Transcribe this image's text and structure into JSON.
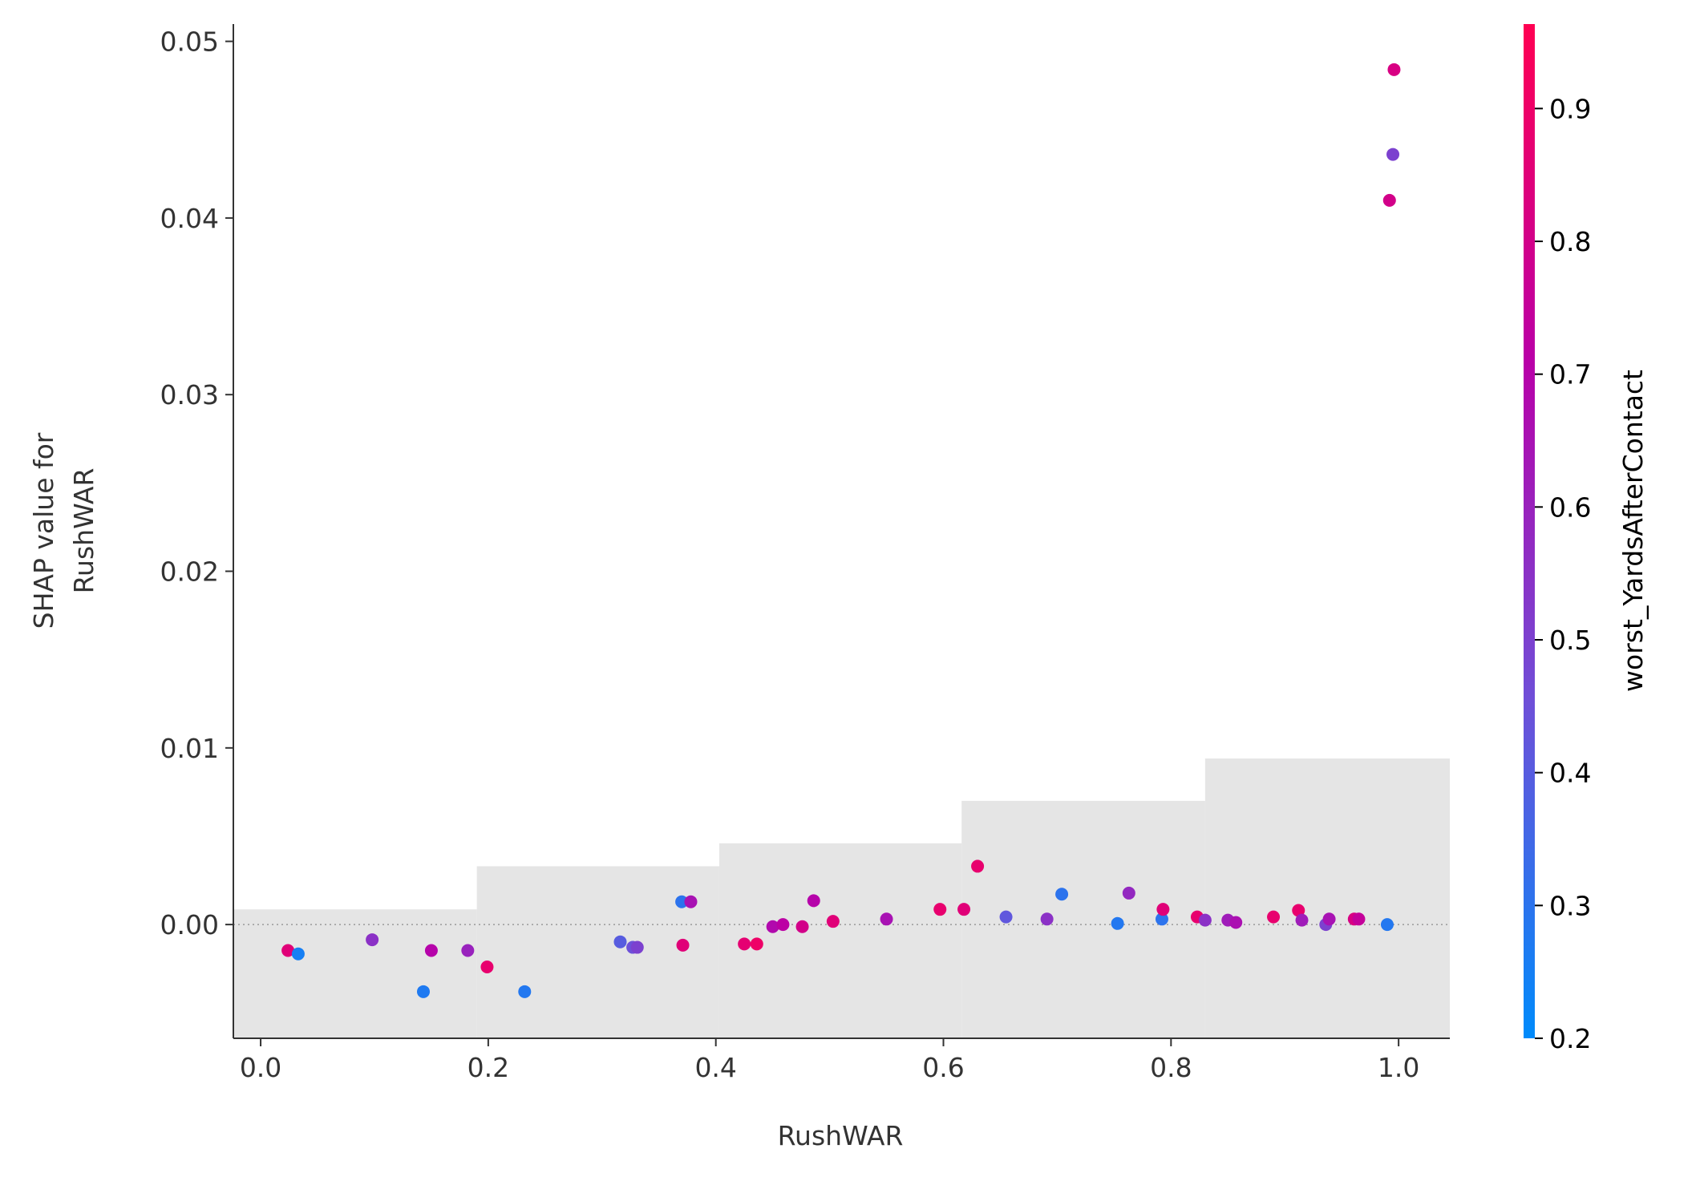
{
  "chart_data": {
    "type": "scatter",
    "xlabel": "RushWAR",
    "ylabel": [
      "SHAP value for",
      "RushWAR"
    ],
    "clabel": "worst_YardsAfterContact",
    "xlim": [
      -0.024,
      1.045
    ],
    "ylim": [
      -0.00644,
      0.05098
    ],
    "clim": [
      0.2,
      0.9636
    ],
    "xticks": [
      {
        "value": 0,
        "label": "0.0"
      },
      {
        "value": 0.2,
        "label": "0.2"
      },
      {
        "value": 0.4,
        "label": "0.4"
      },
      {
        "value": 0.6,
        "label": "0.6"
      },
      {
        "value": 0.8,
        "label": "0.8"
      },
      {
        "value": 1,
        "label": "1.0"
      }
    ],
    "yticks": [
      {
        "value": 0,
        "label": "0.00"
      },
      {
        "value": 0.01,
        "label": "0.01"
      },
      {
        "value": 0.02,
        "label": "0.02"
      },
      {
        "value": 0.03,
        "label": "0.03"
      },
      {
        "value": 0.04,
        "label": "0.04"
      },
      {
        "value": 0.05,
        "label": "0.05"
      }
    ],
    "cticks": [
      0.2,
      0.3,
      0.4,
      0.5,
      0.6,
      0.7,
      0.8,
      0.9
    ],
    "colormap": [
      "#008bfb",
      "#6f4fd8",
      "#b900a8",
      "#ff0052"
    ],
    "hist_color": "#e5e5e5",
    "hist": {
      "bins": [
        -0.024,
        0.19,
        0.403,
        0.616,
        0.83,
        1.045
      ],
      "values": [
        0.00086,
        0.0033,
        0.0046,
        0.007,
        0.0094
      ]
    },
    "x": [
      0.024,
      0.033,
      0.098,
      0.143,
      0.15,
      0.182,
      0.199,
      0.232,
      0.316,
      0.327,
      0.331,
      0.37,
      0.378,
      0.371,
      0.425,
      0.436,
      0.45,
      0.459,
      0.476,
      0.486,
      0.503,
      0.55,
      0.597,
      0.618,
      0.63,
      0.655,
      0.691,
      0.704,
      0.753,
      0.763,
      0.792,
      0.793,
      0.823,
      0.83,
      0.85,
      0.857,
      0.89,
      0.912,
      0.915,
      0.936,
      0.939,
      0.961,
      0.965,
      0.99,
      0.996,
      0.995,
      0.992
    ],
    "values": [
      -0.00147,
      -0.00166,
      -0.00086,
      -0.0038,
      -0.00147,
      -0.00147,
      -0.0024,
      -0.0038,
      -0.00098,
      -0.00129,
      -0.00129,
      0.00129,
      0.00129,
      -0.00117,
      -0.0011,
      -0.0011,
      -0.00012,
      0,
      -0.00012,
      0.00135,
      0.00018,
      0.00031,
      0.00086,
      0.00086,
      0.0033,
      0.00043,
      0.00031,
      0.00172,
      6e-05,
      0.00178,
      0.00031,
      0.00086,
      0.00043,
      0.00025,
      0.00025,
      0.00012,
      0.00043,
      0.0008,
      0.00025,
      0,
      0.00031,
      0.00031,
      0.00031,
      0,
      0.0484,
      0.0436,
      0.041
    ],
    "color_values": [
      0.85,
      0.25,
      0.55,
      0.27,
      0.7,
      0.6,
      0.88,
      0.28,
      0.4,
      0.45,
      0.5,
      0.3,
      0.65,
      0.85,
      0.87,
      0.9,
      0.68,
      0.72,
      0.8,
      0.7,
      0.85,
      0.65,
      0.88,
      0.85,
      0.88,
      0.42,
      0.55,
      0.3,
      0.28,
      0.58,
      0.3,
      0.85,
      0.88,
      0.55,
      0.62,
      0.66,
      0.88,
      0.88,
      0.62,
      0.5,
      0.65,
      0.82,
      0.75,
      0.28,
      0.82,
      0.5,
      0.8
    ]
  }
}
